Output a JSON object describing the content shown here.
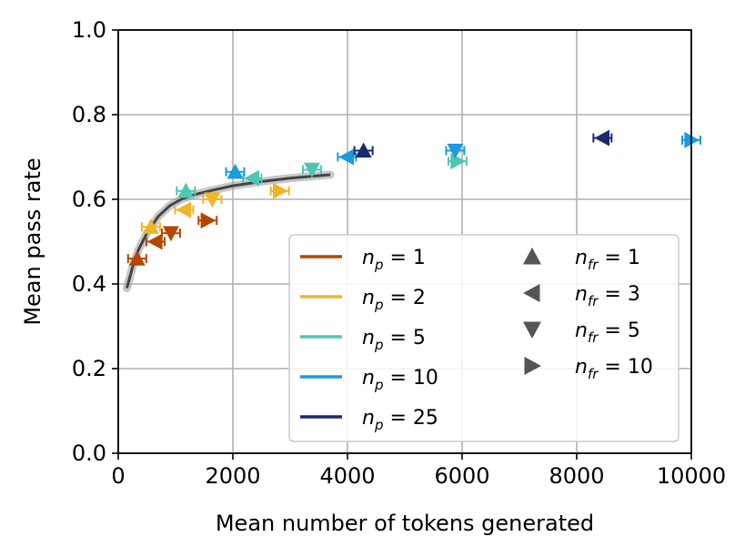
{
  "chart_data": {
    "type": "scatter",
    "title": "",
    "xlabel": "Mean number of tokens generated",
    "ylabel": "Mean pass rate",
    "xlim": [
      0,
      10000
    ],
    "ylim": [
      0.0,
      1.0
    ],
    "xticks": [
      "0",
      "2000",
      "4000",
      "6000",
      "8000",
      "10000"
    ],
    "yticks": [
      "0.0",
      "0.2",
      "0.4",
      "0.6",
      "0.8",
      "1.0"
    ],
    "grid": true,
    "legend_position": "lower-right",
    "colors": {
      "np1": "#b34700",
      "np2": "#f0b429",
      "np5": "#4fc6b4",
      "np10": "#1a9be0",
      "np25": "#1a2a6c",
      "marker_legend": "#555555",
      "fit": "#444444"
    },
    "legend": {
      "np": [
        {
          "key": "np1",
          "prefix": "n",
          "sub": "p",
          "suffix": " = 1"
        },
        {
          "key": "np2",
          "prefix": "n",
          "sub": "p",
          "suffix": " = 2"
        },
        {
          "key": "np5",
          "prefix": "n",
          "sub": "p",
          "suffix": " = 5"
        },
        {
          "key": "np10",
          "prefix": "n",
          "sub": "p",
          "suffix": " = 10"
        },
        {
          "key": "np25",
          "prefix": "n",
          "sub": "p",
          "suffix": " = 25"
        }
      ],
      "nfr": [
        {
          "marker": "up",
          "prefix": "n",
          "sub": "fr",
          "suffix": " = 1"
        },
        {
          "marker": "left",
          "prefix": "n",
          "sub": "fr",
          "suffix": " = 3"
        },
        {
          "marker": "down",
          "prefix": "n",
          "sub": "fr",
          "suffix": " = 5"
        },
        {
          "marker": "right",
          "prefix": "n",
          "sub": "fr",
          "suffix": " = 10"
        }
      ]
    },
    "fit_curve": {
      "x": [
        150,
        250,
        350,
        500,
        700,
        900,
        1100,
        1300,
        1600,
        2000,
        2500,
        3000,
        3500,
        3700
      ],
      "y": [
        0.39,
        0.44,
        0.48,
        0.52,
        0.56,
        0.585,
        0.6,
        0.61,
        0.62,
        0.632,
        0.642,
        0.65,
        0.656,
        0.658
      ]
    },
    "series": [
      {
        "name": "np=1",
        "color_key": "np1",
        "points": [
          {
            "x": 330,
            "y": 0.46,
            "marker": "up"
          },
          {
            "x": 650,
            "y": 0.5,
            "marker": "left"
          },
          {
            "x": 920,
            "y": 0.52,
            "marker": "down"
          },
          {
            "x": 1560,
            "y": 0.55,
            "marker": "right"
          }
        ]
      },
      {
        "name": "np=2",
        "color_key": "np2",
        "points": [
          {
            "x": 570,
            "y": 0.535,
            "marker": "up"
          },
          {
            "x": 1150,
            "y": 0.575,
            "marker": "left"
          },
          {
            "x": 1640,
            "y": 0.6,
            "marker": "down"
          },
          {
            "x": 2820,
            "y": 0.62,
            "marker": "right"
          }
        ]
      },
      {
        "name": "np=5",
        "color_key": "np5",
        "points": [
          {
            "x": 1180,
            "y": 0.62,
            "marker": "up"
          },
          {
            "x": 2340,
            "y": 0.65,
            "marker": "left"
          },
          {
            "x": 3380,
            "y": 0.67,
            "marker": "down"
          },
          {
            "x": 5920,
            "y": 0.69,
            "marker": "right"
          }
        ]
      },
      {
        "name": "np=10",
        "color_key": "np10",
        "points": [
          {
            "x": 2040,
            "y": 0.665,
            "marker": "up"
          },
          {
            "x": 3990,
            "y": 0.7,
            "marker": "left"
          },
          {
            "x": 5880,
            "y": 0.715,
            "marker": "down"
          },
          {
            "x": 10000,
            "y": 0.74,
            "marker": "right"
          }
        ]
      },
      {
        "name": "np=25",
        "color_key": "np25",
        "points": [
          {
            "x": 4280,
            "y": 0.715,
            "marker": "up"
          },
          {
            "x": 8450,
            "y": 0.745,
            "marker": "left"
          }
        ]
      }
    ]
  }
}
